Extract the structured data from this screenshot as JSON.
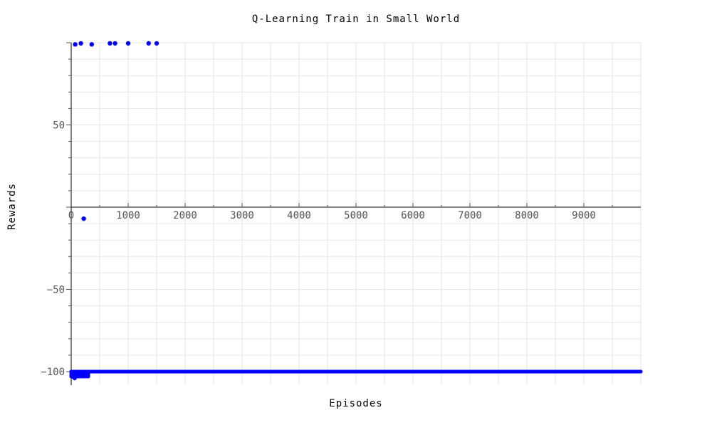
{
  "chart_data": {
    "type": "scatter",
    "title": "Q-Learning Train in Small World",
    "xlabel": "Episodes",
    "ylabel": "Rewards",
    "xlim": [
      0,
      10000
    ],
    "ylim": [
      -107,
      100
    ],
    "x_ticks": [
      0,
      1000,
      2000,
      3000,
      4000,
      5000,
      6000,
      7000,
      8000,
      9000
    ],
    "y_ticks": [
      50,
      -50,
      -100
    ],
    "grid": true,
    "color": "#0000ff",
    "series": [
      {
        "points": [
          [
            70,
            99.0
          ],
          [
            170,
            99.6
          ],
          [
            360,
            99.0
          ],
          [
            680,
            99.6
          ],
          [
            770,
            99.6
          ],
          [
            1000,
            99.6
          ],
          [
            1360,
            99.6
          ],
          [
            1500,
            99.6
          ],
          [
            220,
            -7
          ]
        ],
        "dense_ranges": [
          {
            "x": [
              0,
              10000
            ],
            "y": [
              -100,
              -100
            ]
          },
          {
            "x": [
              0,
              300
            ],
            "y": [
              -100,
              -103
            ]
          }
        ]
      }
    ]
  }
}
